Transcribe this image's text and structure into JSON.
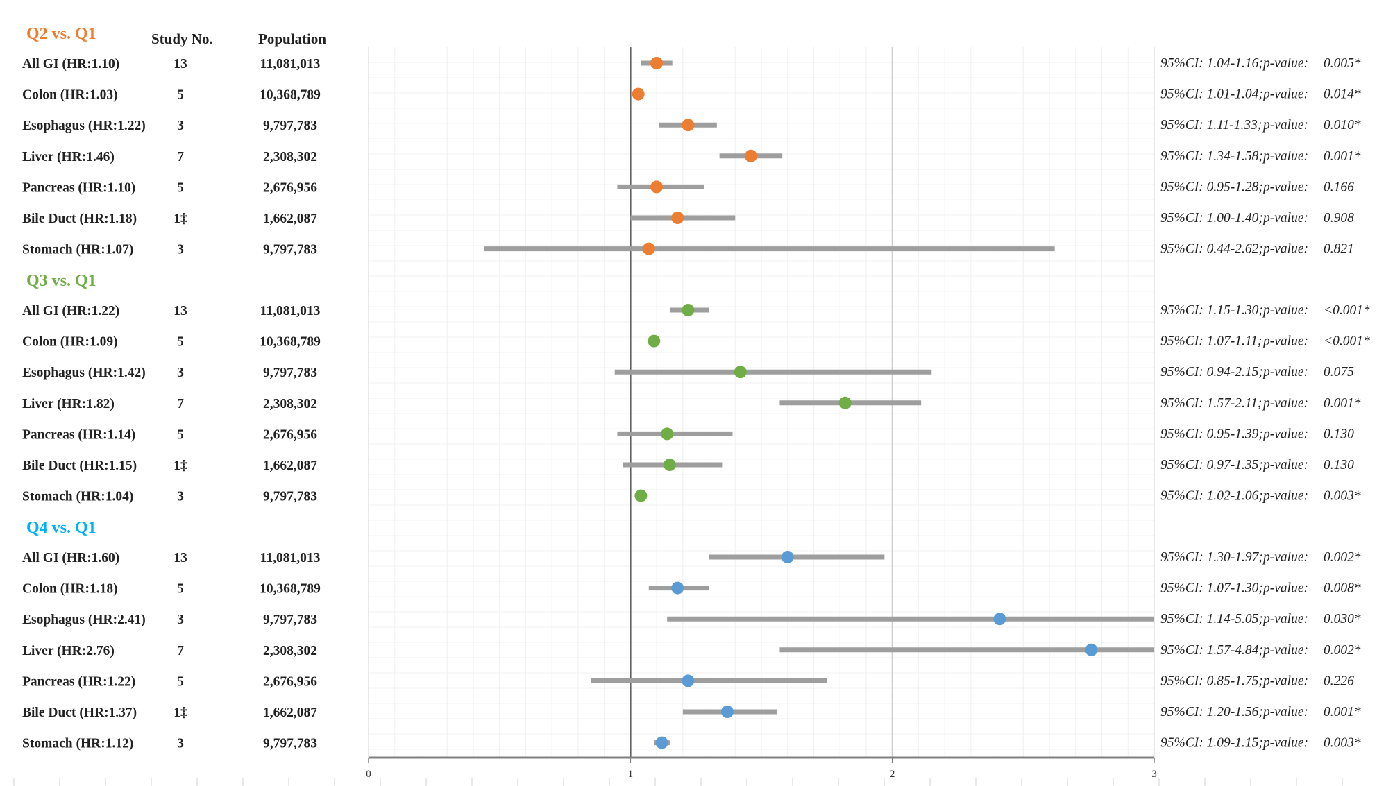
{
  "headers": {
    "study": "Study No.",
    "population": "Population"
  },
  "x_ticks": [
    "0",
    "1",
    "2",
    "3"
  ],
  "chart_data": {
    "type": "scatter",
    "subtype": "forest-plot",
    "xlim": [
      0,
      3
    ],
    "reference_line": 1,
    "grid": true,
    "groups": [
      {
        "title": "Q2 vs. Q1",
        "color": "#ED7D31",
        "rows": [
          {
            "label": "All GI (HR:1.10)",
            "study": "13",
            "population": "11,081,013",
            "hr": 1.1,
            "lo": 1.04,
            "hi": 1.16,
            "ci_text": "95%CI: 1.04-1.16;",
            "p_label": "p-value:",
            "p_text": "0.005*"
          },
          {
            "label": "Colon (HR:1.03)",
            "study": "5",
            "population": "10,368,789",
            "hr": 1.03,
            "lo": 1.01,
            "hi": 1.04,
            "ci_text": "95%CI: 1.01-1.04;",
            "p_label": "p-value:",
            "p_text": "0.014*"
          },
          {
            "label": "Esophagus (HR:1.22)",
            "study": "3",
            "population": "9,797,783",
            "hr": 1.22,
            "lo": 1.11,
            "hi": 1.33,
            "ci_text": "95%CI: 1.11-1.33;",
            "p_label": "p-value:",
            "p_text": "0.010*"
          },
          {
            "label": "Liver (HR:1.46)",
            "study": "7",
            "population": "2,308,302",
            "hr": 1.46,
            "lo": 1.34,
            "hi": 1.58,
            "ci_text": "95%CI: 1.34-1.58;",
            "p_label": "p-value:",
            "p_text": "0.001*"
          },
          {
            "label": "Pancreas (HR:1.10)",
            "study": "5",
            "population": "2,676,956",
            "hr": 1.1,
            "lo": 0.95,
            "hi": 1.28,
            "ci_text": "95%CI: 0.95-1.28;",
            "p_label": "p-value:",
            "p_text": "0.166"
          },
          {
            "label": "Bile Duct (HR:1.18)",
            "study": "1‡",
            "population": "1,662,087",
            "hr": 1.18,
            "lo": 1.0,
            "hi": 1.4,
            "ci_text": "95%CI: 1.00-1.40;",
            "p_label": "p-value:",
            "p_text": "0.908"
          },
          {
            "label": "Stomach (HR:1.07)",
            "study": "3",
            "population": "9,797,783",
            "hr": 1.07,
            "lo": 0.44,
            "hi": 2.62,
            "ci_text": "95%CI: 0.44-2.62;",
            "p_label": "p-value:",
            "p_text": "0.821"
          }
        ]
      },
      {
        "title": "Q3 vs. Q1",
        "color": "#70AD47",
        "rows": [
          {
            "label": "All GI (HR:1.22)",
            "study": "13",
            "population": "11,081,013",
            "hr": 1.22,
            "lo": 1.15,
            "hi": 1.3,
            "ci_text": "95%CI: 1.15-1.30;",
            "p_label": "p-value:",
            "p_text": "<0.001*"
          },
          {
            "label": "Colon (HR:1.09)",
            "study": "5",
            "population": "10,368,789",
            "hr": 1.09,
            "lo": 1.07,
            "hi": 1.11,
            "ci_text": "95%CI: 1.07-1.11;",
            "p_label": "p-value:",
            "p_text": "<0.001*"
          },
          {
            "label": "Esophagus (HR:1.42)",
            "study": "3",
            "population": "9,797,783",
            "hr": 1.42,
            "lo": 0.94,
            "hi": 2.15,
            "ci_text": "95%CI: 0.94-2.15;",
            "p_label": "p-value:",
            "p_text": "0.075"
          },
          {
            "label": "Liver (HR:1.82)",
            "study": "7",
            "population": "2,308,302",
            "hr": 1.82,
            "lo": 1.57,
            "hi": 2.11,
            "ci_text": "95%CI: 1.57-2.11;",
            "p_label": "p-value:",
            "p_text": "0.001*"
          },
          {
            "label": "Pancreas (HR:1.14)",
            "study": "5",
            "population": "2,676,956",
            "hr": 1.14,
            "lo": 0.95,
            "hi": 1.39,
            "ci_text": "95%CI: 0.95-1.39;",
            "p_label": "p-value:",
            "p_text": "0.130"
          },
          {
            "label": "Bile Duct (HR:1.15)",
            "study": "1‡",
            "population": "1,662,087",
            "hr": 1.15,
            "lo": 0.97,
            "hi": 1.35,
            "ci_text": "95%CI: 0.97-1.35;",
            "p_label": "p-value:",
            "p_text": "0.130"
          },
          {
            "label": "Stomach (HR:1.04)",
            "study": "3",
            "population": "9,797,783",
            "hr": 1.04,
            "lo": 1.02,
            "hi": 1.06,
            "ci_text": "95%CI: 1.02-1.06;",
            "p_label": "p-value:",
            "p_text": "0.003*"
          }
        ]
      },
      {
        "title": "Q4 vs. Q1",
        "color": "#00B0F0",
        "marker_color": "#5B9BD5",
        "rows": [
          {
            "label": "All GI (HR:1.60)",
            "study": "13",
            "population": "11,081,013",
            "hr": 1.6,
            "lo": 1.3,
            "hi": 1.97,
            "ci_text": "95%CI: 1.30-1.97;",
            "p_label": "p-value:",
            "p_text": "0.002*"
          },
          {
            "label": "Colon (HR:1.18)",
            "study": "5",
            "population": "10,368,789",
            "hr": 1.18,
            "lo": 1.07,
            "hi": 1.3,
            "ci_text": "95%CI: 1.07-1.30;",
            "p_label": "p-value:",
            "p_text": "0.008*"
          },
          {
            "label": "Esophagus (HR:2.41)",
            "study": "3",
            "population": "9,797,783",
            "hr": 2.41,
            "lo": 1.14,
            "hi": 5.05,
            "ci_text": "95%CI: 1.14-5.05;",
            "p_label": "p-value:",
            "p_text": "0.030*"
          },
          {
            "label": "Liver (HR:2.76)",
            "study": "7",
            "population": "2,308,302",
            "hr": 2.76,
            "lo": 1.57,
            "hi": 4.84,
            "ci_text": "95%CI: 1.57-4.84;",
            "p_label": "p-value:",
            "p_text": "0.002*"
          },
          {
            "label": "Pancreas (HR:1.22)",
            "study": "5",
            "population": "2,676,956",
            "hr": 1.22,
            "lo": 0.85,
            "hi": 1.75,
            "ci_text": "95%CI: 0.85-1.75;",
            "p_label": "p-value:",
            "p_text": "0.226"
          },
          {
            "label": "Bile Duct (HR:1.37)",
            "study": "1‡",
            "population": "1,662,087",
            "hr": 1.37,
            "lo": 1.2,
            "hi": 1.56,
            "ci_text": "95%CI: 1.20-1.56;",
            "p_label": "p-value:",
            "p_text": "0.001*"
          },
          {
            "label": "Stomach (HR:1.12)",
            "study": "3",
            "population": "9,797,783",
            "hr": 1.12,
            "lo": 1.09,
            "hi": 1.15,
            "ci_text": "95%CI: 1.09-1.15;",
            "p_label": "p-value:",
            "p_text": "0.003*"
          }
        ]
      }
    ]
  }
}
